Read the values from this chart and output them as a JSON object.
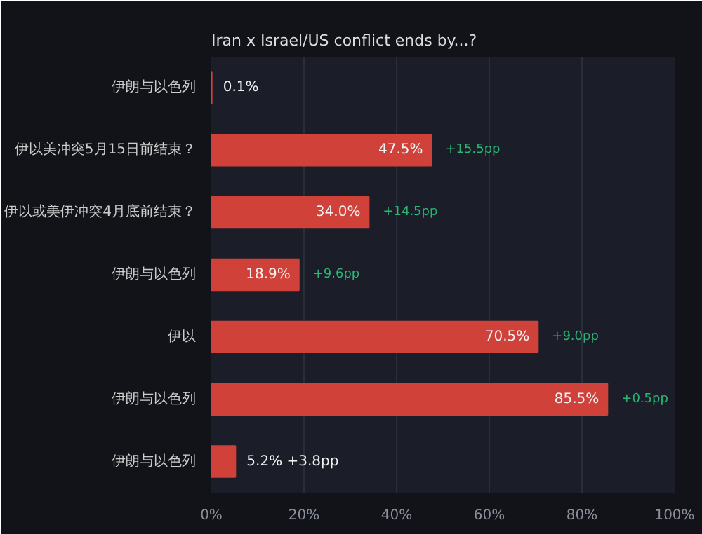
{
  "chart_data": {
    "type": "bar",
    "orientation": "horizontal",
    "title": "Iran x Israel/US conflict ends by...?",
    "categories": [
      "伊朗与以色列",
      "伊以美冲突5月15日前结束？",
      "伊以或美伊冲突4月底前结束？",
      "伊朗与以色列",
      "伊以",
      "伊朗与以色列",
      "伊朗与以色列"
    ],
    "values": [
      0.1,
      47.5,
      34.0,
      18.9,
      70.5,
      85.5,
      5.2
    ],
    "value_labels": [
      "0.1%",
      "47.5% +15.5pp",
      "34.0% +14.5pp",
      "18.9% +9.6pp",
      "70.5% +9.0pp",
      "85.5% +0.5pp",
      "5.2% +3.8pp"
    ],
    "color": "#d0413a",
    "xlim": [
      0,
      100
    ],
    "xticks": [
      {
        "value": 0,
        "label": "0%"
      },
      {
        "value": 20,
        "label": "20%"
      },
      {
        "value": 40,
        "label": "40%"
      },
      {
        "value": 60,
        "label": "60%"
      },
      {
        "value": 80,
        "label": "80%"
      },
      {
        "value": 100,
        "label": "100%"
      }
    ],
    "grid": "x"
  }
}
